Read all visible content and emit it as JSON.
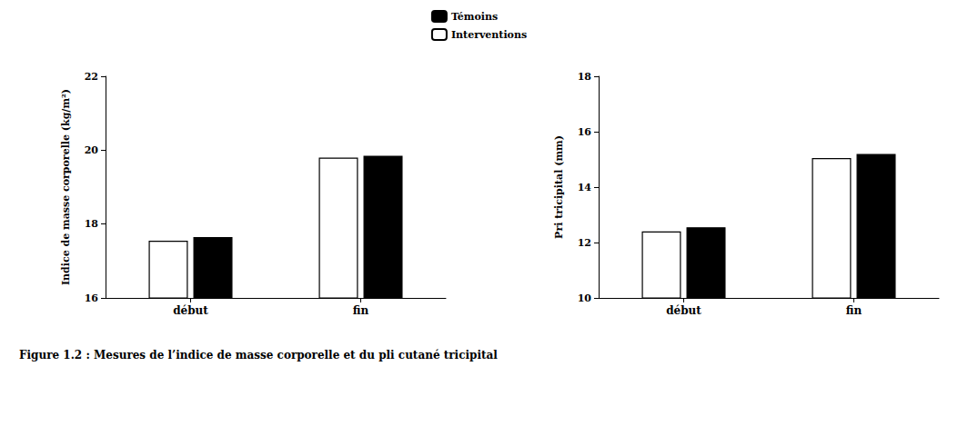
{
  "chart_data": [
    {
      "type": "bar",
      "ylabel": "Indice de masse corporelle (kg/m²)",
      "categories": [
        "début",
        "fin"
      ],
      "series": [
        {
          "name": "Interventions",
          "color": "#ffffff",
          "values": [
            17.55,
            19.8
          ]
        },
        {
          "name": "Témoins",
          "color": "#000000",
          "values": [
            17.65,
            19.85
          ]
        }
      ],
      "ylim": [
        16,
        22
      ],
      "yticks": [
        16,
        18,
        20,
        22
      ],
      "grid": false,
      "legend": "upper center"
    },
    {
      "type": "bar",
      "ylabel": "Pri tricipital (mm)",
      "categories": [
        "début",
        "fin"
      ],
      "series": [
        {
          "name": "Interventions",
          "color": "#ffffff",
          "values": [
            12.4,
            15.05
          ]
        },
        {
          "name": "Témoins",
          "color": "#000000",
          "values": [
            12.55,
            15.2
          ]
        }
      ],
      "ylim": [
        10,
        18
      ],
      "yticks": [
        10,
        12,
        14,
        16,
        18
      ],
      "grid": false,
      "legend": "upper center"
    }
  ],
  "caption": "Figure 1.2 : Mesures de l’indice de masse corporelle et du pli cutané tricipital"
}
